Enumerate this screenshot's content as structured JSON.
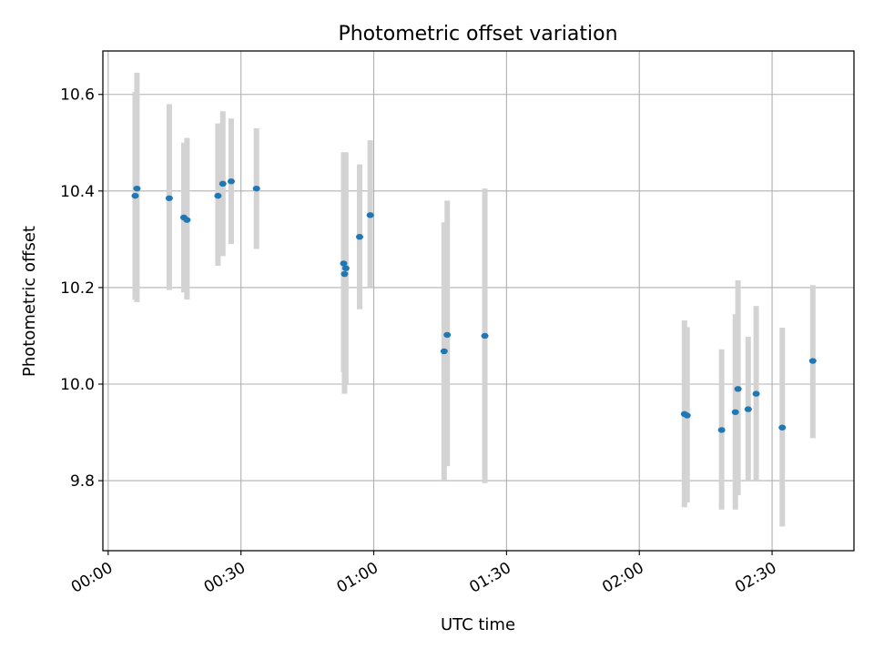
{
  "chart_data": {
    "type": "scatter",
    "title": "Photometric offset variation",
    "xlabel": "UTC time",
    "ylabel": "Photometric offset",
    "x_unit": "minutes after 00:00 UTC",
    "xlim": [
      -1.2,
      168.5
    ],
    "ylim": [
      9.655,
      10.69
    ],
    "x_ticks": [
      {
        "value": 0,
        "label": "00:00"
      },
      {
        "value": 30,
        "label": "00:30"
      },
      {
        "value": 60,
        "label": "01:00"
      },
      {
        "value": 90,
        "label": "01:30"
      },
      {
        "value": 120,
        "label": "02:00"
      },
      {
        "value": 150,
        "label": "02:30"
      }
    ],
    "y_ticks": [
      {
        "value": 9.8,
        "label": "9.8"
      },
      {
        "value": 10.0,
        "label": "10.0"
      },
      {
        "value": 10.2,
        "label": "10.2"
      },
      {
        "value": 10.4,
        "label": "10.4"
      },
      {
        "value": 10.6,
        "label": "10.6"
      }
    ],
    "grid": true,
    "marker_color": "#1f77b4",
    "errorbar_color": "#d3d3d3",
    "points": [
      {
        "x": 6.1,
        "y": 10.39,
        "ylow": 10.175,
        "yhigh": 10.605
      },
      {
        "x": 6.5,
        "y": 10.405,
        "ylow": 10.17,
        "yhigh": 10.645
      },
      {
        "x": 13.8,
        "y": 10.385,
        "ylow": 10.195,
        "yhigh": 10.58
      },
      {
        "x": 17.1,
        "y": 10.345,
        "ylow": 10.19,
        "yhigh": 10.5
      },
      {
        "x": 17.8,
        "y": 10.34,
        "ylow": 10.175,
        "yhigh": 10.51
      },
      {
        "x": 24.8,
        "y": 10.39,
        "ylow": 10.245,
        "yhigh": 10.54
      },
      {
        "x": 25.9,
        "y": 10.415,
        "ylow": 10.265,
        "yhigh": 10.565
      },
      {
        "x": 27.8,
        "y": 10.42,
        "ylow": 10.29,
        "yhigh": 10.55
      },
      {
        "x": 33.5,
        "y": 10.405,
        "ylow": 10.28,
        "yhigh": 10.53
      },
      {
        "x": 53.2,
        "y": 10.25,
        "ylow": 10.025,
        "yhigh": 10.48
      },
      {
        "x": 53.4,
        "y": 10.228,
        "ylow": 9.98,
        "yhigh": 10.48
      },
      {
        "x": 53.7,
        "y": 10.24,
        "ylow": 10.0,
        "yhigh": 10.48
      },
      {
        "x": 56.8,
        "y": 10.305,
        "ylow": 10.155,
        "yhigh": 10.455
      },
      {
        "x": 59.2,
        "y": 10.35,
        "ylow": 10.2,
        "yhigh": 10.505
      },
      {
        "x": 75.9,
        "y": 10.068,
        "ylow": 9.8,
        "yhigh": 10.335
      },
      {
        "x": 76.6,
        "y": 10.102,
        "ylow": 9.83,
        "yhigh": 10.38
      },
      {
        "x": 85.1,
        "y": 10.1,
        "ylow": 9.795,
        "yhigh": 10.405
      },
      {
        "x": 130.2,
        "y": 9.938,
        "ylow": 9.745,
        "yhigh": 10.132
      },
      {
        "x": 130.8,
        "y": 9.935,
        "ylow": 9.755,
        "yhigh": 10.118
      },
      {
        "x": 138.6,
        "y": 9.905,
        "ylow": 9.74,
        "yhigh": 10.072
      },
      {
        "x": 141.7,
        "y": 9.942,
        "ylow": 9.74,
        "yhigh": 10.145
      },
      {
        "x": 142.3,
        "y": 9.99,
        "ylow": 9.77,
        "yhigh": 10.215
      },
      {
        "x": 144.6,
        "y": 9.948,
        "ylow": 9.8,
        "yhigh": 10.098
      },
      {
        "x": 146.4,
        "y": 9.98,
        "ylow": 9.8,
        "yhigh": 10.162
      },
      {
        "x": 152.3,
        "y": 9.91,
        "ylow": 9.705,
        "yhigh": 10.117
      },
      {
        "x": 159.2,
        "y": 10.048,
        "ylow": 9.888,
        "yhigh": 10.205
      }
    ]
  }
}
